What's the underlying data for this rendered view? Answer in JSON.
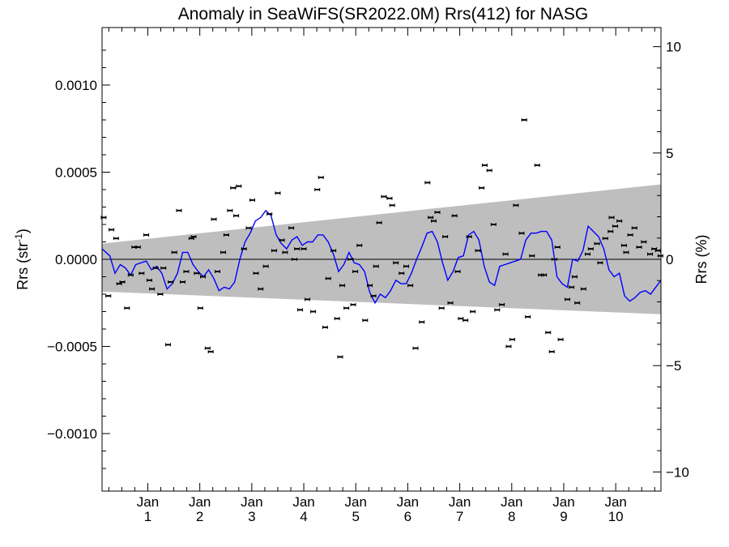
{
  "chart_data": {
    "type": "scatter",
    "title": "Anomaly in SeaWiFS(SR2022.0M) Rrs(412) for NASG",
    "ylabel_left_base": "Rrs (str",
    "ylabel_left_sup": "-1",
    "ylabel_left_close": ")",
    "ylabel_right": "Rrs (%)",
    "xlabel": "",
    "ylim_left": [
      -0.00133,
      0.00133
    ],
    "ylim_right": [
      -10.9,
      10.9
    ],
    "xlim": [
      0.0,
      10.75
    ],
    "grid": false,
    "legend": "none",
    "left_ticks": [
      {
        "value": 0.001,
        "label": "0.0010"
      },
      {
        "value": 0.0005,
        "label": "0.0005"
      },
      {
        "value": 0.0,
        "label": "0.0000"
      },
      {
        "value": -0.0005,
        "label": "−0.0005"
      },
      {
        "value": -0.001,
        "label": "−0.0010"
      }
    ],
    "right_ticks": [
      {
        "value": 10,
        "label": "10"
      },
      {
        "value": 5,
        "label": "5"
      },
      {
        "value": 0,
        "label": "0"
      },
      {
        "value": -5,
        "label": "−5"
      },
      {
        "value": -10,
        "label": "−10"
      }
    ],
    "x_ticks": [
      {
        "value": 0.88,
        "month": "Jan",
        "year": "1"
      },
      {
        "value": 1.88,
        "month": "Jan",
        "year": "2"
      },
      {
        "value": 2.88,
        "month": "Jan",
        "year": "3"
      },
      {
        "value": 3.88,
        "month": "Jan",
        "year": "4"
      },
      {
        "value": 4.88,
        "month": "Jan",
        "year": "5"
      },
      {
        "value": 5.88,
        "month": "Jan",
        "year": "6"
      },
      {
        "value": 6.88,
        "month": "Jan",
        "year": "7"
      },
      {
        "value": 7.88,
        "month": "Jan",
        "year": "8"
      },
      {
        "value": 8.88,
        "month": "Jan",
        "year": "9"
      },
      {
        "value": 9.88,
        "month": "Jan",
        "year": "10"
      }
    ],
    "band": {
      "upper": [
        [
          0.0,
          9e-05
        ],
        [
          10.75,
          0.00043
        ]
      ],
      "lower": [
        [
          0.0,
          -0.000185
        ],
        [
          10.75,
          -0.000315
        ]
      ],
      "color": "#bebebe"
    },
    "zero_line": 0.0,
    "series": [
      {
        "role": "monthly anomaly points",
        "color": "#000000",
        "x": [
          0.03,
          0.12,
          0.18,
          0.27,
          0.33,
          0.39,
          0.48,
          0.55,
          0.62,
          0.69,
          0.76,
          0.85,
          0.91,
          0.96,
          1.03,
          1.12,
          1.18,
          1.27,
          1.32,
          1.39,
          1.48,
          1.55,
          1.62,
          1.72,
          1.76,
          1.82,
          1.89,
          1.94,
          2.03,
          2.09,
          2.15,
          2.22,
          2.33,
          2.39,
          2.46,
          2.52,
          2.58,
          2.63,
          2.73,
          2.82,
          2.89,
          2.96,
          3.05,
          3.15,
          3.22,
          3.31,
          3.38,
          3.46,
          3.52,
          3.64,
          3.7,
          3.75,
          3.81,
          3.88,
          3.95,
          4.06,
          4.14,
          4.21,
          4.29,
          4.35,
          4.45,
          4.52,
          4.58,
          4.62,
          4.7,
          4.78,
          4.83,
          4.87,
          4.95,
          5.06,
          5.15,
          5.22,
          5.27,
          5.33,
          5.42,
          5.53,
          5.58,
          5.65,
          5.76,
          5.85,
          5.93,
          6.03,
          6.15,
          6.26,
          6.32,
          6.38,
          6.45,
          6.53,
          6.6,
          6.7,
          6.78,
          6.84,
          6.9,
          6.99,
          7.06,
          7.13,
          7.23,
          7.3,
          7.36,
          7.45,
          7.53,
          7.6,
          7.69,
          7.76,
          7.82,
          7.89,
          7.96,
          8.07,
          8.12,
          8.19,
          8.27,
          8.37,
          8.44,
          8.5,
          8.58,
          8.65,
          8.7,
          8.76,
          8.82,
          8.95,
          9.03,
          9.09,
          9.14,
          9.26,
          9.34,
          9.4,
          9.52,
          9.58,
          9.68,
          9.78,
          9.8,
          9.87,
          9.95,
          10.04,
          10.08,
          10.16,
          10.24,
          10.33,
          10.42,
          10.54,
          10.62,
          10.69,
          10.74
        ],
        "y": [
          0.00024,
          -0.00021,
          0.00017,
          0.00012,
          -0.00014,
          -0.00013,
          -0.00028,
          -9e-05,
          7e-05,
          7e-05,
          -8e-05,
          0.00014,
          -0.00012,
          -0.00017,
          -5e-05,
          -0.0002,
          -5e-05,
          -0.00049,
          -0.00013,
          4e-05,
          0.00028,
          -0.00013,
          -7e-05,
          0.00012,
          0.00013,
          -8e-05,
          -0.00028,
          -0.0001,
          -0.00051,
          -0.00053,
          0.00023,
          -7e-05,
          4e-05,
          0.00014,
          0.00028,
          0.00041,
          0.00025,
          0.00042,
          6e-05,
          0.00018,
          0.00034,
          -8e-05,
          -0.00017,
          -4e-05,
          0.00026,
          5e-05,
          0.00038,
          0.00011,
          4e-05,
          0.00018,
          0.0,
          6e-05,
          -0.00029,
          6e-05,
          -0.00023,
          -0.0003,
          0.0004,
          0.00047,
          -0.00039,
          -0.00011,
          5e-05,
          -0.00034,
          -0.00056,
          -0.00015,
          -0.00028,
          0.0,
          -0.00026,
          -7e-05,
          8e-05,
          -0.00035,
          -0.00015,
          -0.00021,
          -4e-05,
          0.00021,
          0.00036,
          0.00035,
          0.00031,
          -2e-05,
          -8e-05,
          -4e-05,
          -0.00015,
          -0.00051,
          -0.00036,
          0.00044,
          0.00024,
          0.00022,
          0.00027,
          -0.00028,
          0.00013,
          -0.00025,
          0.00025,
          -7e-05,
          -0.00034,
          -0.00035,
          0.00013,
          -0.0003,
          5e-05,
          0.00041,
          0.00054,
          0.00051,
          0.0002,
          -0.00029,
          -0.00026,
          3e-05,
          -0.0005,
          -0.00046,
          0.00031,
          0.00015,
          0.0008,
          -0.00033,
          2e-05,
          0.00054,
          -9e-05,
          -9e-05,
          -0.00042,
          -0.00053,
          0.0,
          7e-05,
          -0.00046,
          -0.00023,
          -0.00016,
          -0.0001,
          -0.00025,
          -0.00017,
          3e-05,
          6e-05,
          9e-05,
          -2e-05,
          0.00012,
          0.00016,
          0.00024,
          0.00019,
          0.00022,
          8e-05,
          4e-05,
          0.00014,
          0.00018,
          7e-05,
          0.0001,
          3e-05,
          6e-05,
          5e-05,
          2e-05
        ]
      },
      {
        "role": "smoothed running mean",
        "color": "#0000ff",
        "x": [
          0.0,
          0.15,
          0.25,
          0.35,
          0.45,
          0.55,
          0.65,
          0.75,
          0.85,
          0.95,
          1.05,
          1.15,
          1.25,
          1.35,
          1.45,
          1.55,
          1.65,
          1.75,
          1.85,
          1.95,
          2.05,
          2.15,
          2.25,
          2.35,
          2.45,
          2.55,
          2.65,
          2.75,
          2.85,
          2.95,
          3.05,
          3.15,
          3.25,
          3.35,
          3.45,
          3.55,
          3.65,
          3.75,
          3.85,
          3.95,
          4.05,
          4.15,
          4.25,
          4.35,
          4.45,
          4.55,
          4.65,
          4.75,
          4.85,
          4.95,
          5.05,
          5.15,
          5.25,
          5.35,
          5.45,
          5.55,
          5.65,
          5.75,
          5.85,
          5.95,
          6.05,
          6.15,
          6.25,
          6.35,
          6.45,
          6.55,
          6.65,
          6.75,
          6.85,
          6.95,
          7.05,
          7.15,
          7.25,
          7.35,
          7.45,
          7.55,
          7.65,
          7.75,
          7.85,
          7.95,
          8.05,
          8.15,
          8.25,
          8.35,
          8.45,
          8.55,
          8.65,
          8.75,
          8.85,
          8.95,
          9.05,
          9.15,
          9.25,
          9.35,
          9.45,
          9.55,
          9.65,
          9.75,
          9.85,
          9.95,
          10.05,
          10.15,
          10.25,
          10.35,
          10.45,
          10.55,
          10.65,
          10.75
        ],
        "y": [
          6e-05,
          2e-05,
          -8e-05,
          -3e-05,
          -5e-05,
          -9e-05,
          -3e-05,
          -2e-05,
          -1e-05,
          -6e-05,
          -4e-05,
          -8e-05,
          -0.00017,
          -0.00014,
          -8e-05,
          4e-05,
          4e-05,
          -3e-05,
          -7e-05,
          -0.0001,
          -6e-05,
          -0.00011,
          -0.00018,
          -0.00016,
          -0.00017,
          -0.00013,
          0.0,
          0.0001,
          0.00015,
          0.00022,
          0.00024,
          0.00028,
          0.00025,
          0.00014,
          9e-05,
          6e-05,
          0.00011,
          0.00013,
          8e-05,
          0.0001,
          0.0001,
          0.00014,
          0.00014,
          0.0001,
          3e-05,
          -7e-05,
          -3e-05,
          4e-05,
          -2e-05,
          -3e-05,
          -7e-05,
          -0.00019,
          -0.00025,
          -0.0002,
          -0.00022,
          -0.00018,
          -0.00012,
          -0.00014,
          -0.00014,
          -8e-05,
          0.0,
          7e-05,
          0.00015,
          0.00016,
          0.0001,
          -2e-05,
          -0.00012,
          -7e-05,
          1e-05,
          2e-05,
          0.00014,
          0.00016,
          0.00011,
          -4e-05,
          -0.00013,
          -0.00015,
          -4e-05,
          -3e-05,
          -2e-05,
          -1e-05,
          0.0,
          0.00011,
          0.00015,
          0.00015,
          0.00016,
          0.00016,
          0.00011,
          -0.0001,
          -0.00014,
          -0.00016,
          0.0,
          -1e-05,
          5e-05,
          0.00019,
          0.00016,
          0.00013,
          6e-05,
          -6e-05,
          -0.0001,
          -8e-05,
          -0.00021,
          -0.00024,
          -0.00022,
          -0.00019,
          -0.00018,
          -0.0002,
          -0.00016,
          -0.00012
        ]
      }
    ]
  }
}
